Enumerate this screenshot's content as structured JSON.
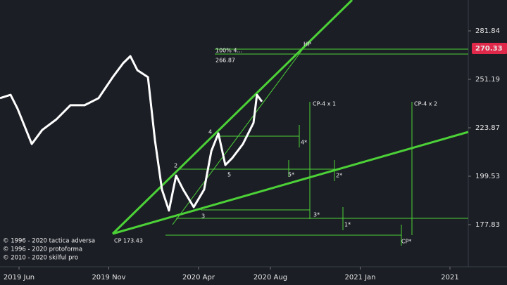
{
  "chart_data": {
    "type": "line",
    "log_scale": true,
    "color": "#ffffff",
    "x": [
      3.94,
      4.53,
      4.92,
      5.71,
      6.29,
      7.08,
      7.86,
      8.65,
      9.43,
      10.22,
      10.8,
      11.2,
      11.59,
      12.18,
      12.57,
      12.96,
      13.35,
      13.75,
      14.14,
      14.73,
      15.31,
      15.71,
      16.1,
      16.49,
      16.88,
      17.47,
      18.06,
      18.25,
      18.53
    ],
    "values": [
      240.2,
      242.1,
      234.2,
      215.4,
      222.7,
      228.4,
      236.2,
      236.2,
      240.2,
      252.5,
      261.0,
      265.4,
      256.7,
      252.5,
      217.2,
      193.3,
      183.9,
      199.8,
      193.3,
      185.4,
      193.3,
      211.8,
      220.9,
      204.9,
      208.4,
      215.4,
      226.5,
      242.1,
      238.2
    ],
    "xlim": [
      3.94,
      30.02
    ],
    "xticks": [
      {
        "value": 5,
        "label": "2019 Jun"
      },
      {
        "value": 10,
        "label": "2019 Nov"
      },
      {
        "value": 15,
        "label": "2020 Apr"
      },
      {
        "value": 19,
        "label": "2020 Aug"
      },
      {
        "value": 24,
        "label": "2021 Jan"
      },
      {
        "value": 29,
        "label": "2021"
      }
    ],
    "ylim": [
      160.9,
      303.3
    ],
    "yticks": [
      177.83,
      199.53,
      223.87,
      251.19,
      281.84
    ],
    "last_price": 270.33,
    "annotations": {
      "hp": "HP",
      "pct": "100% 4...",
      "level": "266.87",
      "cp4x1": "CP-4 x 1",
      "cp4x2": "CP-4 x 2",
      "w4": "4",
      "w4s": "4*",
      "w2": "2",
      "w5": "5",
      "w5s": "5*",
      "w2s": "2*",
      "w3": "3",
      "w3s": "3*",
      "w1s": "1*",
      "cps": "CP*",
      "cp": "CP 173.43"
    },
    "copyright": [
      "© 1996 - 2020 tactica adversa",
      "© 1996 - 2020 protoforma",
      "© 2010 - 2020 skilful pro"
    ]
  }
}
